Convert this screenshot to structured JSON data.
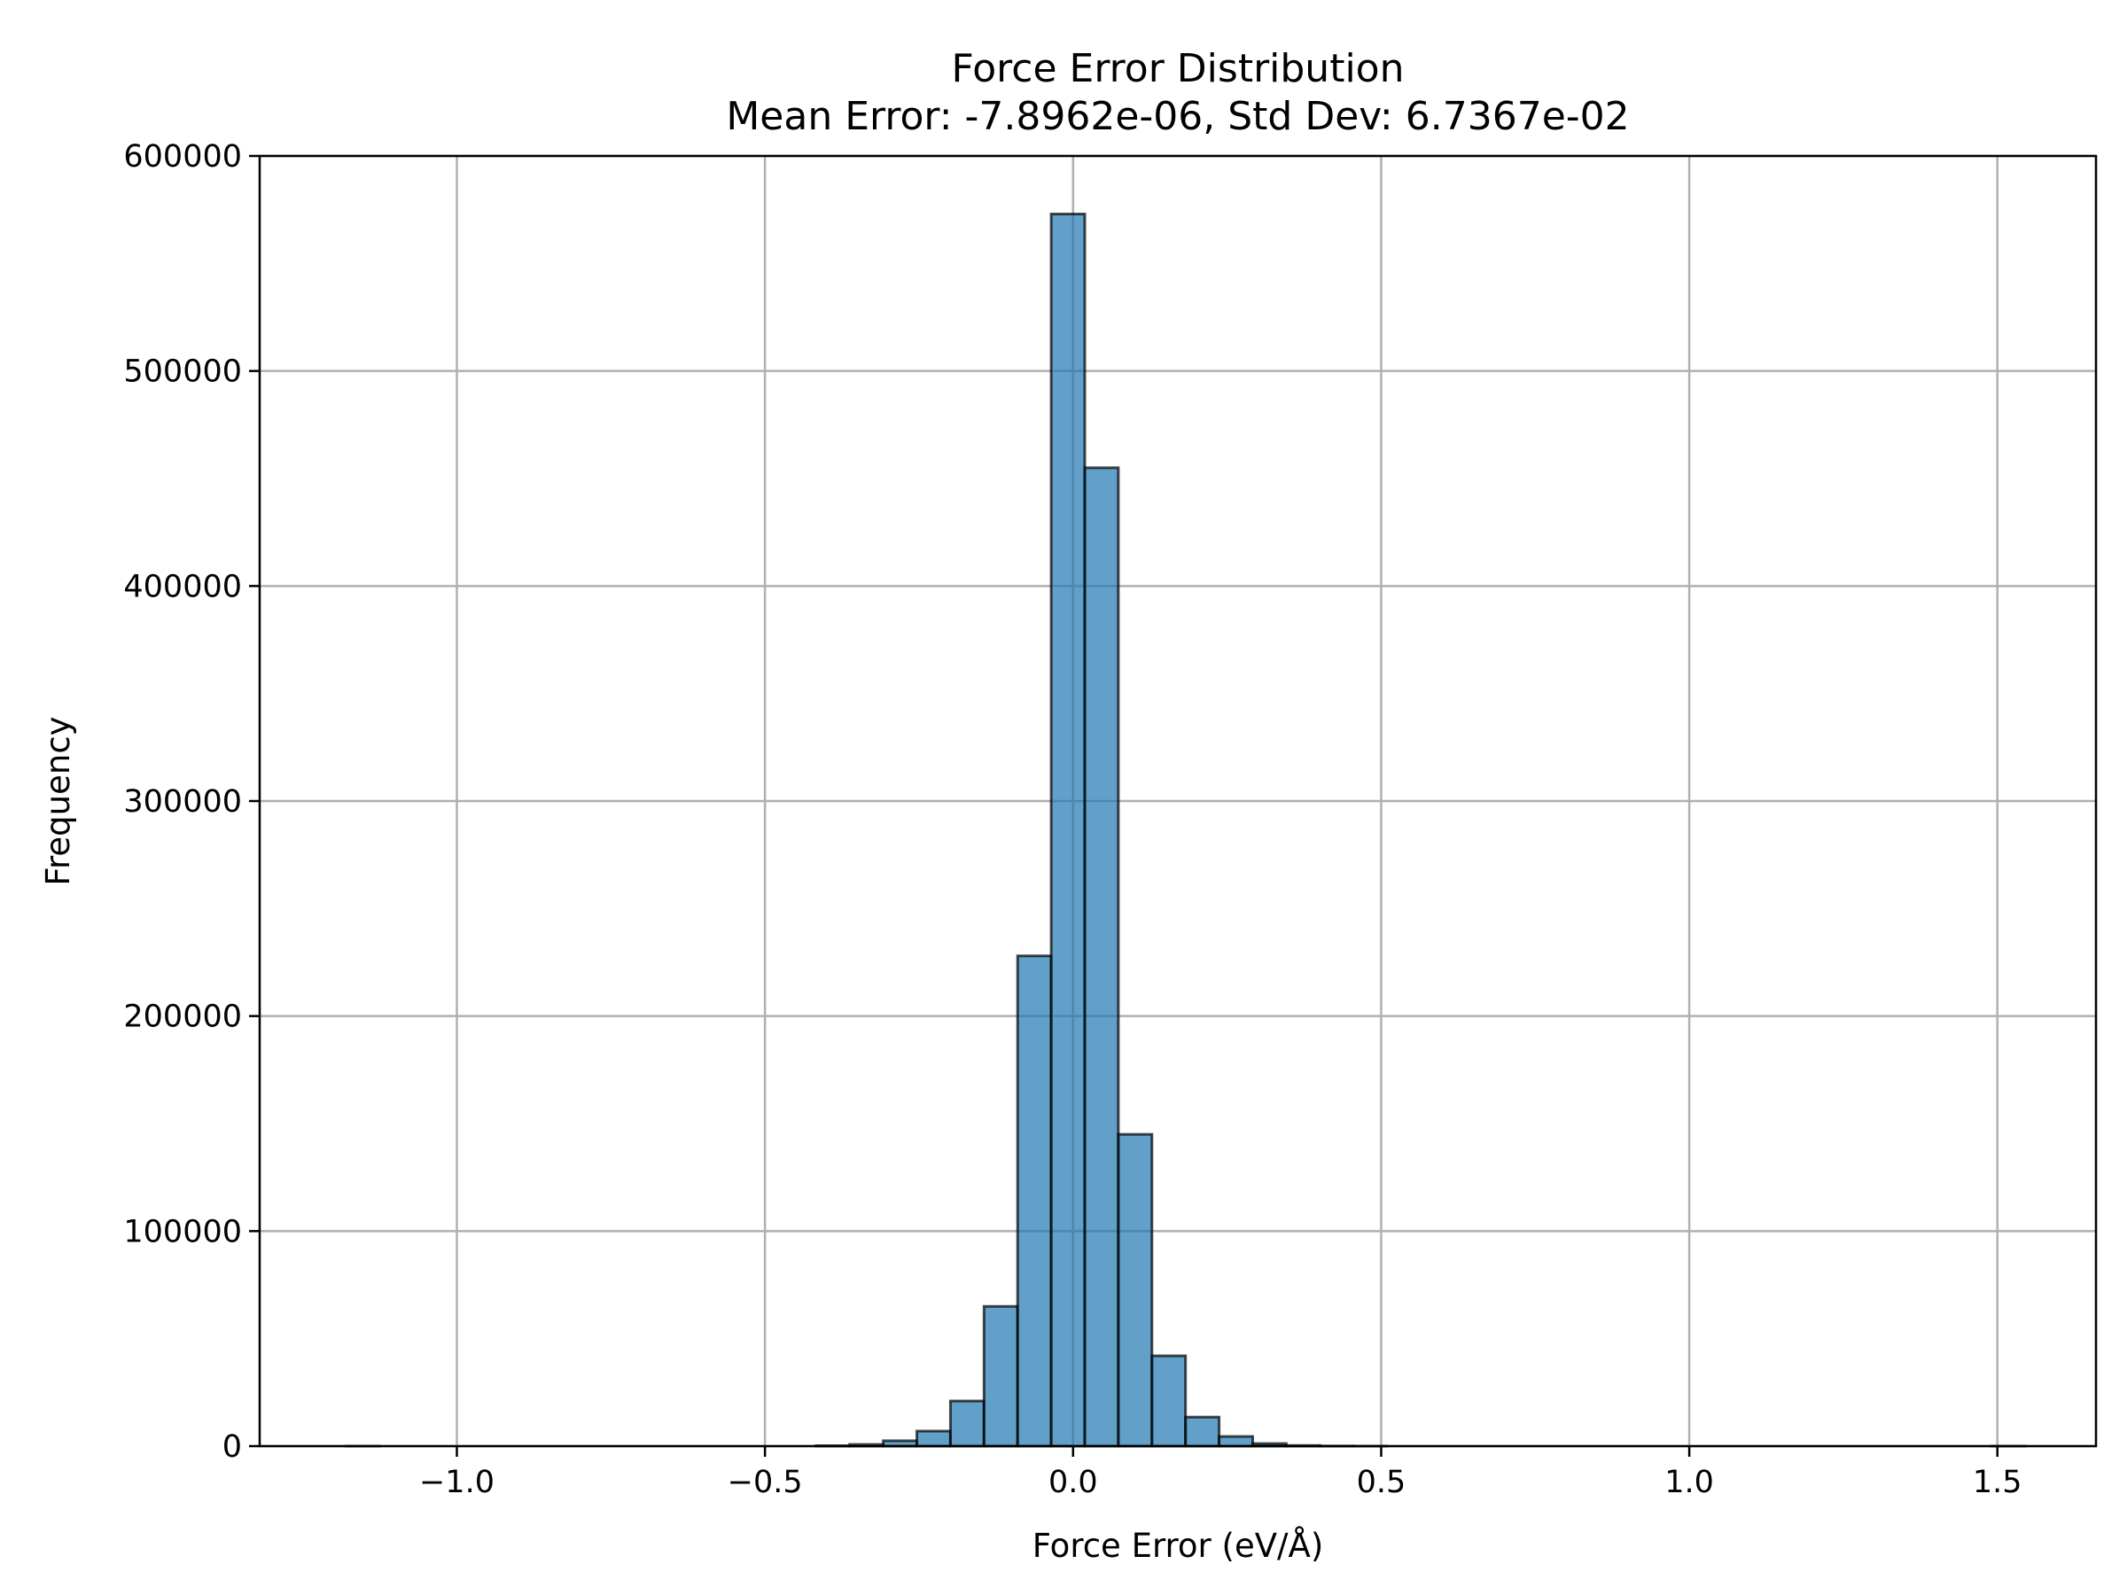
{
  "chart_data": {
    "type": "bar",
    "title": "Force Error Distribution",
    "subtitle": "Mean Error: -7.8962e-06, Std Dev: 6.7367e-02",
    "xlabel": "Force Error (eV/Å)",
    "ylabel": "Frequency",
    "xlim": [
      -1.32,
      1.66
    ],
    "ylim": [
      0,
      600000
    ],
    "x_ticks": [
      -1.0,
      -0.5,
      0.0,
      0.5,
      1.0,
      1.5
    ],
    "x_tick_labels": [
      "−1.0",
      "−0.5",
      "0.0",
      "0.5",
      "1.0",
      "1.5"
    ],
    "y_ticks": [
      0,
      100000,
      200000,
      300000,
      400000,
      500000,
      600000
    ],
    "y_tick_labels": [
      "0",
      "100000",
      "200000",
      "300000",
      "400000",
      "500000",
      "600000"
    ],
    "grid": true,
    "bar_color": "#1f77b4",
    "edge_color": "#000000",
    "bin_width": 0.0545,
    "bin_starts": [
      -1.18,
      -1.1255,
      -1.071,
      -1.0165,
      -0.962,
      -0.9075,
      -0.853,
      -0.7985,
      -0.744,
      -0.6895,
      -0.635,
      -0.5805,
      -0.526,
      -0.4715,
      -0.417,
      -0.3625,
      -0.308,
      -0.2535,
      -0.199,
      -0.1445,
      -0.09,
      -0.0355,
      0.019,
      0.0735,
      0.128,
      0.1825,
      0.237,
      0.2915,
      0.346,
      0.4005,
      0.455,
      0.5095,
      0.564,
      0.6185,
      0.673,
      0.7275,
      0.782,
      0.8365,
      0.891,
      0.9455,
      1.0,
      1.0545,
      1.109,
      1.1635,
      1.218,
      1.2725,
      1.327,
      1.3815,
      1.436,
      1.4905
    ],
    "values": [
      1,
      0,
      0,
      0,
      0,
      0,
      0,
      0,
      0,
      0,
      0,
      0,
      0,
      0,
      200,
      800,
      2500,
      7000,
      21000,
      65000,
      228000,
      573000,
      455000,
      145000,
      42000,
      13500,
      4500,
      1200,
      300,
      50,
      5,
      0,
      0,
      0,
      0,
      0,
      0,
      0,
      0,
      0,
      0,
      0,
      0,
      0,
      0,
      0,
      0,
      0,
      0,
      1
    ]
  }
}
